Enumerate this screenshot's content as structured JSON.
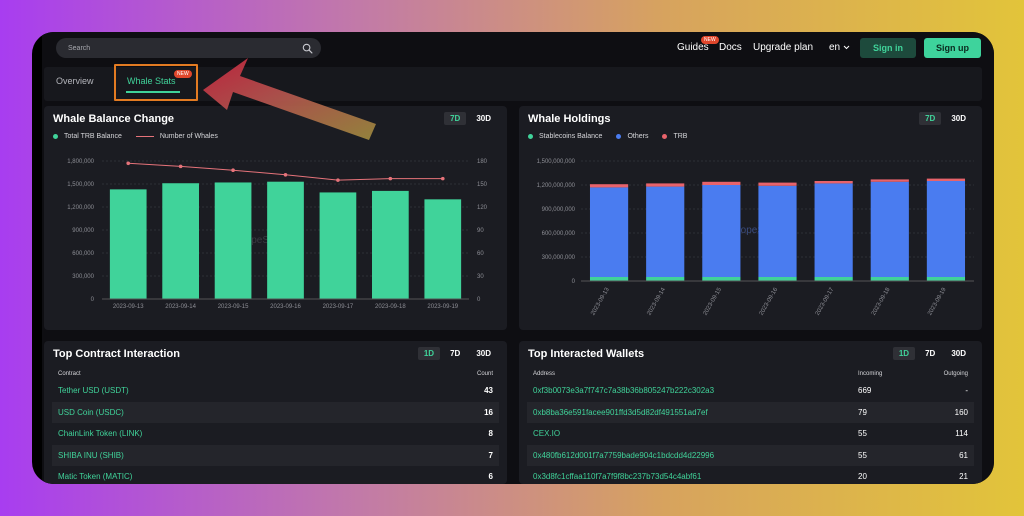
{
  "search": {
    "placeholder": "Search"
  },
  "nav": {
    "guides": "Guides",
    "guides_badge": "NEW",
    "docs": "Docs",
    "upgrade": "Upgrade plan",
    "lang": "en",
    "signin": "Sign in",
    "signup": "Sign up"
  },
  "tabs": {
    "overview": "Overview",
    "whale_stats": "Whale Stats",
    "whale_badge": "NEW"
  },
  "colors": {
    "accent": "#40d39a",
    "line": "#e6737a",
    "blue": "#4a7cf0",
    "red": "#e8636b",
    "highlight": "#e37b22"
  },
  "whale_balance": {
    "title": "Whale Balance Change",
    "ranges": [
      "7D",
      "30D"
    ],
    "active_range": "7D",
    "legend_bars": "Total TRB Balance",
    "legend_line": "Number of Whales"
  },
  "whale_holdings": {
    "title": "Whale Holdings",
    "ranges": [
      "7D",
      "30D"
    ],
    "active_range": "7D",
    "legend": [
      "Stablecoins Balance",
      "Others",
      "TRB"
    ]
  },
  "chart_data": [
    {
      "type": "bar",
      "title": "Whale Balance Change",
      "categories": [
        "2023-09-13",
        "2023-09-14",
        "2023-09-15",
        "2023-09-16",
        "2023-09-17",
        "2023-09-18",
        "2023-09-19"
      ],
      "series": [
        {
          "name": "Total TRB Balance",
          "type": "bar",
          "axis": "left",
          "values": [
            1430000,
            1510000,
            1520000,
            1530000,
            1390000,
            1410000,
            1300000
          ]
        },
        {
          "name": "Number of Whales",
          "type": "line",
          "axis": "right",
          "values": [
            177,
            173,
            168,
            162,
            155,
            157,
            157
          ]
        }
      ],
      "ylim": [
        0,
        1800000
      ],
      "yticks": [
        "0",
        "300,000",
        "600,000",
        "900,000",
        "1,200,000",
        "1,500,000",
        "1,800,000"
      ],
      "y2lim": [
        0,
        180
      ],
      "y2ticks": [
        "0",
        "30",
        "60",
        "90",
        "120",
        "150",
        "180"
      ],
      "watermark": "ScopeScan"
    },
    {
      "type": "bar",
      "stacked": true,
      "title": "Whale Holdings",
      "categories": [
        "2023-09-13",
        "2023-09-14",
        "2023-09-15",
        "2023-09-16",
        "2023-09-17",
        "2023-09-18",
        "2023-09-19"
      ],
      "series": [
        {
          "name": "Stablecoins Balance",
          "values": [
            50000000,
            50000000,
            50000000,
            50000000,
            50000000,
            50000000,
            50000000
          ]
        },
        {
          "name": "Others",
          "values": [
            1120000000,
            1130000000,
            1150000000,
            1140000000,
            1170000000,
            1190000000,
            1200000000
          ]
        },
        {
          "name": "TRB",
          "values": [
            40000000,
            40000000,
            40000000,
            40000000,
            30000000,
            30000000,
            30000000
          ]
        }
      ],
      "ylim": [
        0,
        1500000000
      ],
      "yticks": [
        "0",
        "300,000,000",
        "600,000,000",
        "900,000,000",
        "1,200,000,000",
        "1,500,000,000"
      ],
      "watermark": "ScopeScan"
    }
  ],
  "contracts": {
    "title": "Top Contract Interaction",
    "ranges": [
      "1D",
      "7D",
      "30D"
    ],
    "active_range": "1D",
    "col_contract": "Contract",
    "col_count": "Count",
    "rows": [
      {
        "name": "Tether USD (USDT)",
        "count": "43"
      },
      {
        "name": "USD Coin (USDC)",
        "count": "16"
      },
      {
        "name": "ChainLink Token (LINK)",
        "count": "8"
      },
      {
        "name": "SHIBA INU (SHIB)",
        "count": "7"
      },
      {
        "name": "Matic Token (MATIC)",
        "count": "6"
      }
    ]
  },
  "wallets": {
    "title": "Top Interacted Wallets",
    "ranges": [
      "1D",
      "7D",
      "30D"
    ],
    "active_range": "1D",
    "col_address": "Address",
    "col_incoming": "Incoming",
    "col_outgoing": "Outgoing",
    "rows": [
      {
        "address": "0xf3b0073e3a7f747c7a38b36b805247b222c302a3",
        "incoming": "669",
        "outgoing": "-"
      },
      {
        "address": "0xb8ba36e591facee901ffd3d5d82df491551ad7ef",
        "incoming": "79",
        "outgoing": "160"
      },
      {
        "address": "CEX.IO",
        "incoming": "55",
        "outgoing": "114"
      },
      {
        "address": "0x480fb612d001f7a7759bade904c1bdcdd4d22996",
        "incoming": "55",
        "outgoing": "61"
      },
      {
        "address": "0x3d8fc1cffaa110f7a7f9f8bc237b73d54c4abf61",
        "incoming": "20",
        "outgoing": "21"
      }
    ]
  }
}
